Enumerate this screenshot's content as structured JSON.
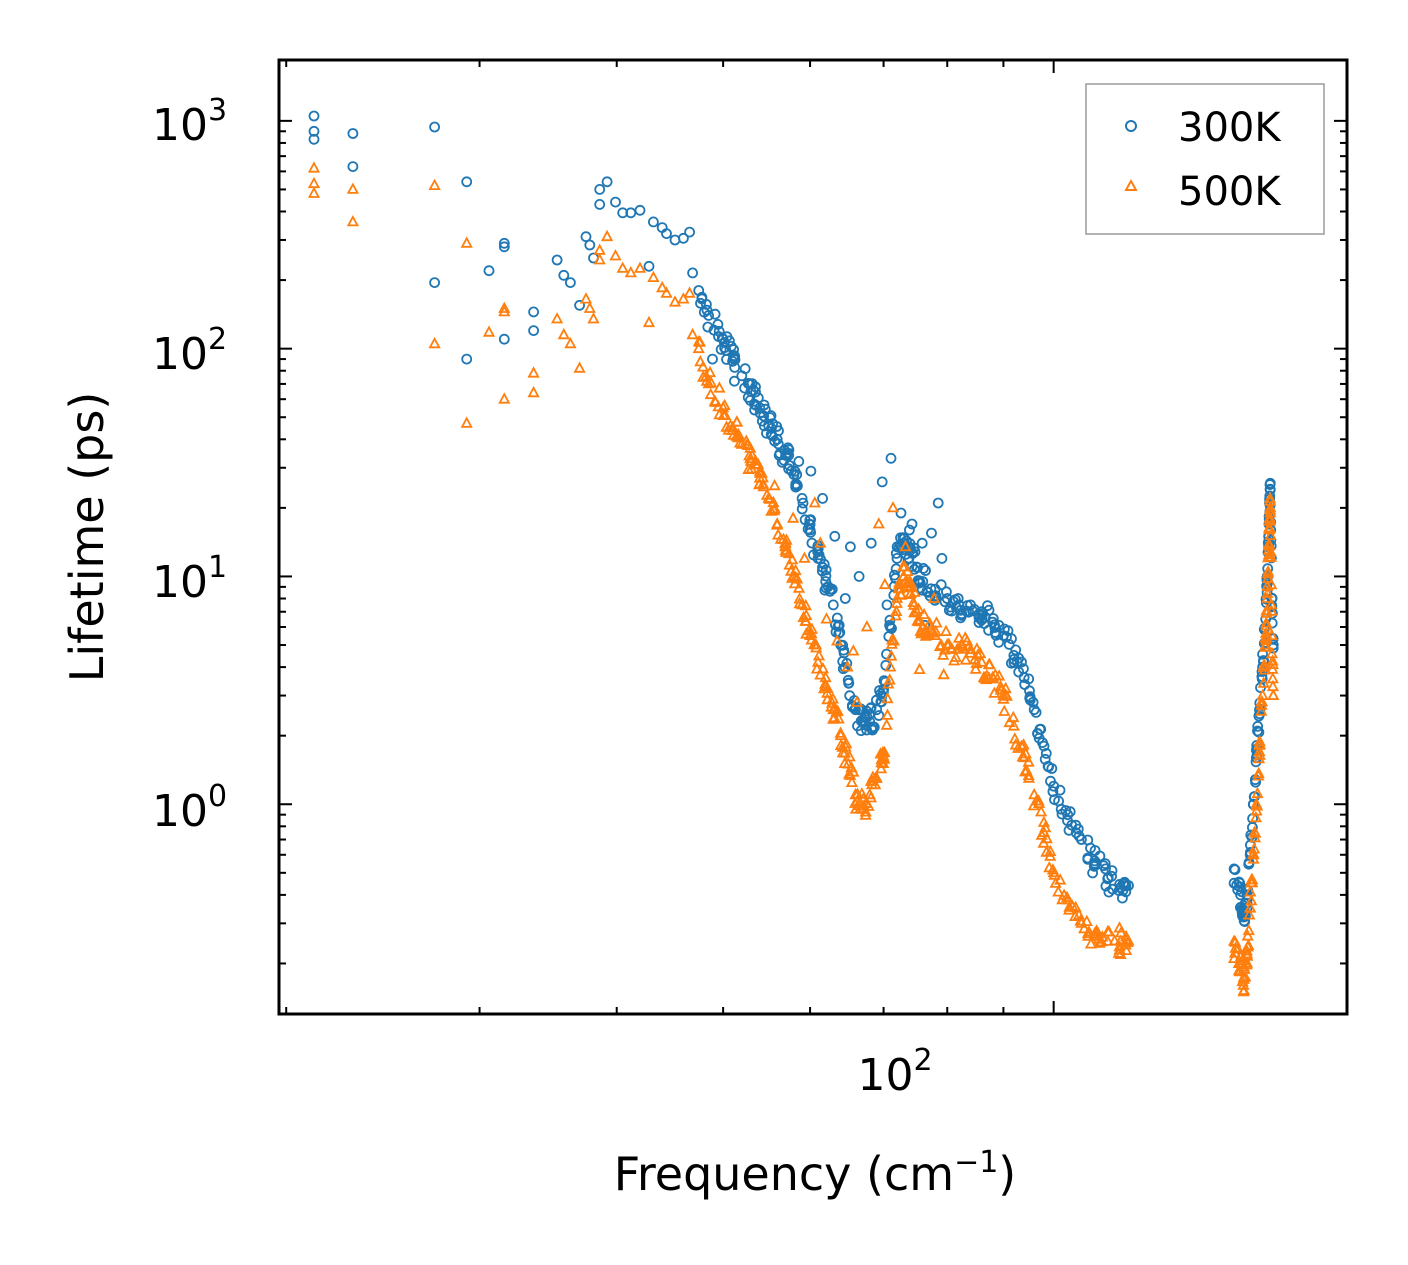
{
  "chart_data": {
    "type": "scatter",
    "xscale": "log",
    "yscale": "log",
    "xlim": [
      19.7,
      185
    ],
    "ylim": [
      0.12,
      1850
    ],
    "xlabel_text": "Frequency (cm",
    "xlabel_sup": "−1",
    "xlabel_close": ")",
    "ylabel": "Lifetime (ps)",
    "x_ticks": [
      {
        "base": "10",
        "exp": "2",
        "value": 100
      }
    ],
    "y_ticks": [
      {
        "base": "10",
        "exp": "0",
        "value": 1
      },
      {
        "base": "10",
        "exp": "1",
        "value": 10
      },
      {
        "base": "10",
        "exp": "2",
        "value": 100
      },
      {
        "base": "10",
        "exp": "3",
        "value": 1000
      }
    ],
    "legend": {
      "position": "top-right",
      "entries": [
        "300K",
        "500K"
      ]
    },
    "series": [
      {
        "name": "300K",
        "color": "#1f77b4",
        "marker": "circle",
        "anchors": [
          [
            21.2,
            1050
          ],
          [
            21.2,
            900
          ],
          [
            21.2,
            830
          ],
          [
            23.0,
            880
          ],
          [
            23.0,
            630
          ],
          [
            27.3,
            940
          ],
          [
            27.3,
            195
          ],
          [
            29.2,
            540
          ],
          [
            29.2,
            90
          ],
          [
            30.6,
            220
          ],
          [
            31.6,
            290
          ],
          [
            31.6,
            280
          ],
          [
            31.6,
            110
          ],
          [
            33.6,
            145
          ],
          [
            33.6,
            120
          ],
          [
            35.3,
            245
          ],
          [
            35.8,
            210
          ],
          [
            36.3,
            195
          ],
          [
            37.0,
            155
          ],
          [
            37.5,
            310
          ],
          [
            37.8,
            285
          ],
          [
            38.1,
            250
          ],
          [
            38.6,
            430
          ],
          [
            38.6,
            500
          ],
          [
            39.2,
            540
          ],
          [
            39.9,
            440
          ],
          [
            40.5,
            395
          ],
          [
            41.2,
            395
          ],
          [
            42.0,
            405
          ],
          [
            42.8,
            230
          ],
          [
            43.2,
            360
          ],
          [
            44.0,
            340
          ],
          [
            44.4,
            320
          ],
          [
            45.2,
            300
          ],
          [
            46.0,
            305
          ],
          [
            46.6,
            325
          ],
          [
            46.9,
            215
          ],
          [
            47.5,
            180
          ],
          [
            48.5,
            140
          ],
          [
            50,
            110
          ],
          [
            51,
            88
          ],
          [
            52,
            76
          ],
          [
            53,
            65
          ],
          [
            54,
            55
          ],
          [
            55,
            46
          ],
          [
            56,
            40
          ],
          [
            57,
            34
          ],
          [
            58,
            28
          ],
          [
            59,
            22
          ],
          [
            60,
            16
          ],
          [
            61,
            12
          ],
          [
            62,
            9.5
          ],
          [
            63,
            7.5
          ],
          [
            64,
            5
          ],
          [
            65,
            3.5
          ],
          [
            66,
            2.6
          ],
          [
            67,
            2.3
          ],
          [
            68,
            2.3
          ],
          [
            69,
            2.6
          ],
          [
            70,
            3.2
          ],
          [
            71,
            6
          ],
          [
            72,
            12
          ],
          [
            73,
            14
          ],
          [
            74,
            13
          ],
          [
            75,
            11
          ],
          [
            76,
            9.5
          ],
          [
            78,
            8.8
          ],
          [
            80,
            8
          ],
          [
            82,
            7.5
          ],
          [
            84,
            7.5
          ],
          [
            86,
            7
          ],
          [
            88,
            6.3
          ],
          [
            90,
            5.5
          ],
          [
            92,
            4.5
          ],
          [
            94,
            3.6
          ],
          [
            96,
            2.6
          ],
          [
            98,
            1.8
          ],
          [
            100,
            1.2
          ],
          [
            103,
            0.9
          ],
          [
            106,
            0.7
          ],
          [
            109,
            0.55
          ],
          [
            112,
            0.47
          ],
          [
            115,
            0.43
          ],
          [
            117,
            0.44
          ],
          [
            146,
            0.45
          ],
          [
            146,
            0.52
          ],
          [
            148,
            0.4
          ],
          [
            149,
            0.32
          ],
          [
            150,
            0.4
          ],
          [
            151,
            0.6
          ],
          [
            152,
            1.0
          ],
          [
            153,
            1.6
          ],
          [
            154,
            2.6
          ],
          [
            155,
            4.0
          ],
          [
            156,
            6.5
          ],
          [
            156.5,
            10
          ],
          [
            157,
            15
          ],
          [
            157.3,
            21
          ],
          [
            157.5,
            24
          ],
          [
            158,
            8
          ],
          [
            158.5,
            5
          ]
        ],
        "extras": [
          [
            48.9,
            90
          ],
          [
            51.2,
            72
          ],
          [
            53.4,
            57
          ],
          [
            55.3,
            42
          ],
          [
            57.4,
            36
          ],
          [
            58.6,
            32
          ],
          [
            60.1,
            29
          ],
          [
            61.6,
            22
          ],
          [
            63.2,
            15
          ],
          [
            65.3,
            13.5
          ],
          [
            66.5,
            10
          ],
          [
            68.2,
            14
          ],
          [
            69.8,
            26
          ],
          [
            71.1,
            33
          ],
          [
            72.6,
            19
          ],
          [
            74.3,
            17
          ],
          [
            75.9,
            14
          ],
          [
            77.4,
            15.5
          ],
          [
            79.1,
            12
          ],
          [
            64.6,
            8
          ],
          [
            70.5,
            7.5
          ],
          [
            73.9,
            16
          ],
          [
            78.5,
            21
          ],
          [
            76.3,
            6.1
          ]
        ]
      },
      {
        "name": "500K",
        "color": "#ff7f0e",
        "marker": "triangle",
        "anchors": [
          [
            21.2,
            620
          ],
          [
            21.2,
            530
          ],
          [
            21.2,
            480
          ],
          [
            23.0,
            500
          ],
          [
            23.0,
            360
          ],
          [
            27.3,
            520
          ],
          [
            27.3,
            105
          ],
          [
            29.2,
            290
          ],
          [
            29.2,
            47
          ],
          [
            30.6,
            118
          ],
          [
            31.6,
            150
          ],
          [
            31.6,
            145
          ],
          [
            31.6,
            60
          ],
          [
            33.6,
            78
          ],
          [
            33.6,
            64
          ],
          [
            35.3,
            135
          ],
          [
            35.8,
            115
          ],
          [
            36.3,
            105
          ],
          [
            37.0,
            82
          ],
          [
            37.5,
            165
          ],
          [
            37.8,
            150
          ],
          [
            38.1,
            135
          ],
          [
            38.6,
            270
          ],
          [
            38.6,
            245
          ],
          [
            39.2,
            310
          ],
          [
            39.9,
            255
          ],
          [
            40.5,
            225
          ],
          [
            41.2,
            215
          ],
          [
            42.0,
            225
          ],
          [
            42.8,
            130
          ],
          [
            43.2,
            205
          ],
          [
            44.0,
            185
          ],
          [
            44.4,
            175
          ],
          [
            45.2,
            160
          ],
          [
            46.0,
            165
          ],
          [
            46.6,
            175
          ],
          [
            46.9,
            115
          ],
          [
            47.5,
            100
          ],
          [
            48.5,
            70
          ],
          [
            50,
            55
          ],
          [
            51,
            45
          ],
          [
            52,
            38
          ],
          [
            53,
            32
          ],
          [
            54,
            27
          ],
          [
            55,
            22
          ],
          [
            56,
            17
          ],
          [
            57,
            13
          ],
          [
            58,
            10
          ],
          [
            59,
            7.5
          ],
          [
            60,
            5.5
          ],
          [
            61,
            4.2
          ],
          [
            62,
            3.3
          ],
          [
            63,
            2.6
          ],
          [
            64,
            2
          ],
          [
            65,
            1.5
          ],
          [
            66,
            1.1
          ],
          [
            67,
            0.95
          ],
          [
            68,
            1.1
          ],
          [
            69,
            1.3
          ],
          [
            70,
            1.6
          ],
          [
            71,
            4
          ],
          [
            72,
            8
          ],
          [
            73,
            10
          ],
          [
            74,
            9
          ],
          [
            75,
            7
          ],
          [
            76,
            6
          ],
          [
            78,
            5.5
          ],
          [
            80,
            5
          ],
          [
            82,
            4.8
          ],
          [
            84,
            4.6
          ],
          [
            86,
            4.2
          ],
          [
            88,
            3.6
          ],
          [
            90,
            3.0
          ],
          [
            92,
            2.2
          ],
          [
            94,
            1.6
          ],
          [
            96,
            1.1
          ],
          [
            98,
            0.75
          ],
          [
            100,
            0.5
          ],
          [
            103,
            0.38
          ],
          [
            106,
            0.3
          ],
          [
            109,
            0.27
          ],
          [
            112,
            0.25
          ],
          [
            115,
            0.25
          ],
          [
            117,
            0.25
          ],
          [
            146,
            0.21
          ],
          [
            146,
            0.25
          ],
          [
            148,
            0.2
          ],
          [
            149,
            0.17
          ],
          [
            150,
            0.22
          ],
          [
            151,
            0.35
          ],
          [
            152,
            0.6
          ],
          [
            153,
            1.0
          ],
          [
            154,
            1.7
          ],
          [
            155,
            3.0
          ],
          [
            156,
            5
          ],
          [
            156.5,
            8
          ],
          [
            157,
            13
          ],
          [
            157.3,
            18
          ],
          [
            157.5,
            20
          ],
          [
            158,
            5.5
          ],
          [
            158.5,
            3
          ]
        ],
        "extras": [
          [
            49.2,
            58
          ],
          [
            51.6,
            42
          ],
          [
            53.8,
            31
          ],
          [
            55.7,
            25
          ],
          [
            57.9,
            18
          ],
          [
            59.3,
            12
          ],
          [
            60.6,
            21
          ],
          [
            62.1,
            6.5
          ],
          [
            63.5,
            5.2
          ],
          [
            64.9,
            4
          ],
          [
            66.2,
            2.8
          ],
          [
            67.6,
            6
          ],
          [
            69.3,
            17
          ],
          [
            71.4,
            20
          ],
          [
            72.9,
            11
          ],
          [
            74.7,
            8.5
          ],
          [
            76.2,
            6.8
          ],
          [
            77.8,
            8
          ],
          [
            79.4,
            3.7
          ],
          [
            61.3,
            14
          ],
          [
            65.7,
            4.7
          ],
          [
            70.2,
            9.2
          ],
          [
            73.3,
            13.5
          ],
          [
            75.5,
            3.9
          ]
        ]
      }
    ]
  }
}
